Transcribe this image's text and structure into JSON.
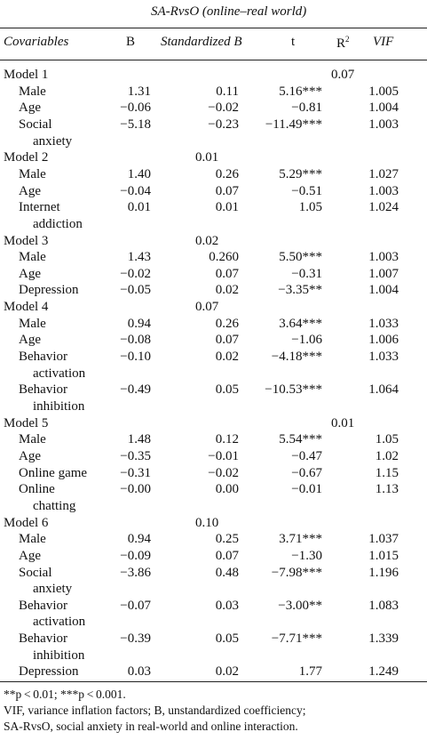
{
  "title": "SA-RvsO (online–real world)",
  "header": {
    "covariables": "Covariables",
    "b": "B",
    "standardized_b": "Standardized B",
    "t": "t",
    "r2": "R",
    "r2_sup": "2",
    "vif": "VIF"
  },
  "rows": [
    {
      "label": "Model 1",
      "r2": "0.07"
    },
    {
      "label": "Male",
      "b": "1.31",
      "s": "0.11",
      "t": "5.16***",
      "vif": "1.005"
    },
    {
      "label": "Age",
      "b": "−0.06",
      "s": "−0.02",
      "t": "−0.81",
      "vif": "1.004"
    },
    {
      "label": "Social",
      "b": "−5.18",
      "s": "−0.23",
      "t": "−11.49***",
      "vif": "1.003"
    },
    {
      "label": "anxiety"
    },
    {
      "label": "Model 2",
      "s": "0.01"
    },
    {
      "label": "Male",
      "b": "1.40",
      "s": "0.26",
      "t": "5.29***",
      "vif": "1.027"
    },
    {
      "label": "Age",
      "b": "−0.04",
      "s": "0.07",
      "t": "−0.51",
      "vif": "1.003"
    },
    {
      "label": "Internet",
      "b": "0.01",
      "s": "0.01",
      "t": "1.05",
      "vif": "1.024"
    },
    {
      "label": "addiction"
    },
    {
      "label": "Model 3",
      "s": "0.02"
    },
    {
      "label": "Male",
      "b": "1.43",
      "s": "0.260",
      "t": "5.50***",
      "vif": "1.003"
    },
    {
      "label": "Age",
      "b": "−0.02",
      "s": "0.07",
      "t": "−0.31",
      "vif": "1.007"
    },
    {
      "label": "Depression",
      "b": "−0.05",
      "s": "0.02",
      "t": "−3.35**",
      "vif": "1.004"
    },
    {
      "label": "Model 4",
      "s": "0.07"
    },
    {
      "label": "Male",
      "b": "0.94",
      "s": "0.26",
      "t": "3.64***",
      "vif": "1.033"
    },
    {
      "label": "Age",
      "b": "−0.08",
      "s": "0.07",
      "t": "−1.06",
      "vif": "1.006"
    },
    {
      "label": "Behavior",
      "b": "−0.10",
      "s": "0.02",
      "t": "−4.18***",
      "vif": "1.033"
    },
    {
      "label": "activation"
    },
    {
      "label": "Behavior",
      "b": "−0.49",
      "s": "0.05",
      "t": "−10.53***",
      "vif": "1.064"
    },
    {
      "label": "inhibition"
    },
    {
      "label": "Model 5",
      "r2": "0.01"
    },
    {
      "label": "Male",
      "b": "1.48",
      "s": "0.12",
      "t": "5.54***",
      "vif": "1.05"
    },
    {
      "label": "Age",
      "b": "−0.35",
      "s": "−0.01",
      "t": "−0.47",
      "vif": "1.02"
    },
    {
      "label": "Online game",
      "b": "−0.31",
      "s": "−0.02",
      "t": "−0.67",
      "vif": "1.15"
    },
    {
      "label": "Online",
      "b": "−0.00",
      "s": "0.00",
      "t": "−0.01",
      "vif": "1.13"
    },
    {
      "label": "chatting"
    },
    {
      "label": "Model 6",
      "s": "0.10"
    },
    {
      "label": "Male",
      "b": "0.94",
      "s": "0.25",
      "t": "3.71***",
      "vif": "1.037"
    },
    {
      "label": "Age",
      "b": "−0.09",
      "s": "0.07",
      "t": "−1.30",
      "vif": "1.015"
    },
    {
      "label": "Social",
      "b": "−3.86",
      "s": "0.48",
      "t": "−7.98***",
      "vif": "1.196"
    },
    {
      "label": "anxiety"
    },
    {
      "label": "Behavior",
      "b": "−0.07",
      "s": "0.03",
      "t": "−3.00**",
      "vif": "1.083"
    },
    {
      "label": "activation"
    },
    {
      "label": "Behavior",
      "b": "−0.39",
      "s": "0.05",
      "t": "−7.71***",
      "vif": "1.339"
    },
    {
      "label": "inhibition"
    },
    {
      "label": "Depression",
      "b": "0.03",
      "s": "0.02",
      "t": "1.77",
      "vif": "1.249"
    }
  ],
  "notes": [
    "**p < 0.01; ***p < 0.001.",
    "VIF, variance inflation factors; B, unstandardized coefficiency;",
    "SA-RvsO, social anxiety in real-world and online interaction."
  ]
}
